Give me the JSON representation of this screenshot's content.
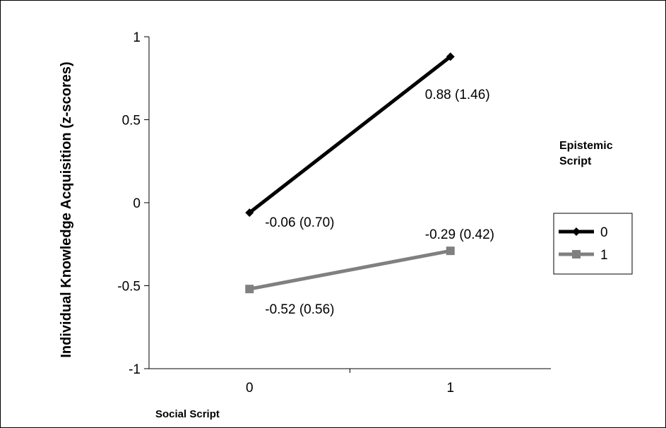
{
  "chart_data": {
    "type": "line",
    "title": "",
    "xlabel": "Social Script",
    "ylabel": "Individual Knowledge Acquisition (z-scores)",
    "categories": [
      "0",
      "1"
    ],
    "ylim": [
      -1,
      1
    ],
    "yticks": [
      1,
      0.5,
      0,
      -0.5,
      -1
    ],
    "ytick_labels": [
      "1",
      "0.5",
      "0",
      "-0.5",
      "-1"
    ],
    "grid": false,
    "legend": {
      "title": "Epistemic Script",
      "position": "right"
    },
    "series": [
      {
        "name": "0",
        "values": [
          -0.06,
          0.88
        ],
        "labels": [
          "-0.06 (0.70)",
          "0.88 (1.46)"
        ],
        "color": "#000000",
        "marker": "diamond"
      },
      {
        "name": "1",
        "values": [
          -0.52,
          -0.29
        ],
        "labels": [
          "-0.52 (0.56)",
          "-0.29 (0.42)"
        ],
        "color": "#808080",
        "marker": "square"
      }
    ]
  }
}
